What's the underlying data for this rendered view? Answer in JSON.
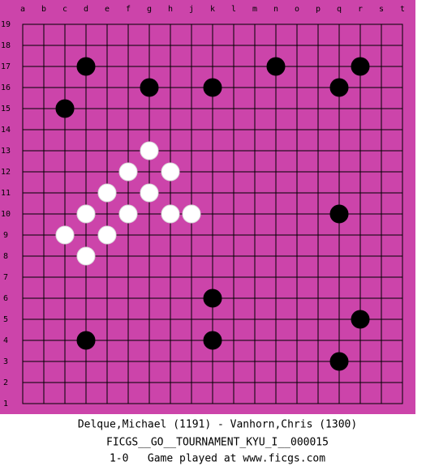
{
  "board": {
    "columns": [
      "a",
      "b",
      "c",
      "d",
      "e",
      "f",
      "g",
      "h",
      "j",
      "k",
      "l",
      "m",
      "n",
      "o",
      "p",
      "q",
      "r",
      "s",
      "t"
    ],
    "rows": [
      19,
      18,
      17,
      16,
      15,
      14,
      13,
      12,
      11,
      10,
      9,
      8,
      7,
      6,
      5,
      4,
      3,
      2,
      1
    ],
    "stones": [
      {
        "color": "black",
        "col": "d",
        "row": 17
      },
      {
        "color": "black",
        "col": "n",
        "row": 17
      },
      {
        "color": "black",
        "col": "r",
        "row": 17
      },
      {
        "color": "black",
        "col": "g",
        "row": 16
      },
      {
        "color": "black",
        "col": "k",
        "row": 16
      },
      {
        "color": "black",
        "col": "q",
        "row": 16
      },
      {
        "color": "black",
        "col": "c",
        "row": 15
      },
      {
        "color": "black",
        "col": "q",
        "row": 10
      },
      {
        "color": "black",
        "col": "k",
        "row": 6
      },
      {
        "color": "black",
        "col": "r",
        "row": 5
      },
      {
        "color": "black",
        "col": "d",
        "row": 4
      },
      {
        "color": "black",
        "col": "k",
        "row": 4
      },
      {
        "color": "black",
        "col": "q",
        "row": 3
      },
      {
        "color": "white",
        "col": "g",
        "row": 13
      },
      {
        "color": "white",
        "col": "f",
        "row": 12
      },
      {
        "color": "white",
        "col": "h",
        "row": 12
      },
      {
        "color": "white",
        "col": "e",
        "row": 11
      },
      {
        "color": "white",
        "col": "g",
        "row": 11
      },
      {
        "color": "white",
        "col": "d",
        "row": 10
      },
      {
        "color": "white",
        "col": "f",
        "row": 10
      },
      {
        "color": "white",
        "col": "h",
        "row": 10
      },
      {
        "color": "white",
        "col": "j",
        "row": 10
      },
      {
        "color": "white",
        "col": "c",
        "row": 9
      },
      {
        "color": "white",
        "col": "e",
        "row": 9
      },
      {
        "color": "white",
        "col": "d",
        "row": 8
      }
    ]
  },
  "caption": {
    "players": "Delque,Michael (1191) - Vanhorn,Chris (1300)",
    "event": "FICGS__GO__TOURNAMENT_KYU_I__000015",
    "result": "1-0   Game played at www.ficgs.com"
  }
}
